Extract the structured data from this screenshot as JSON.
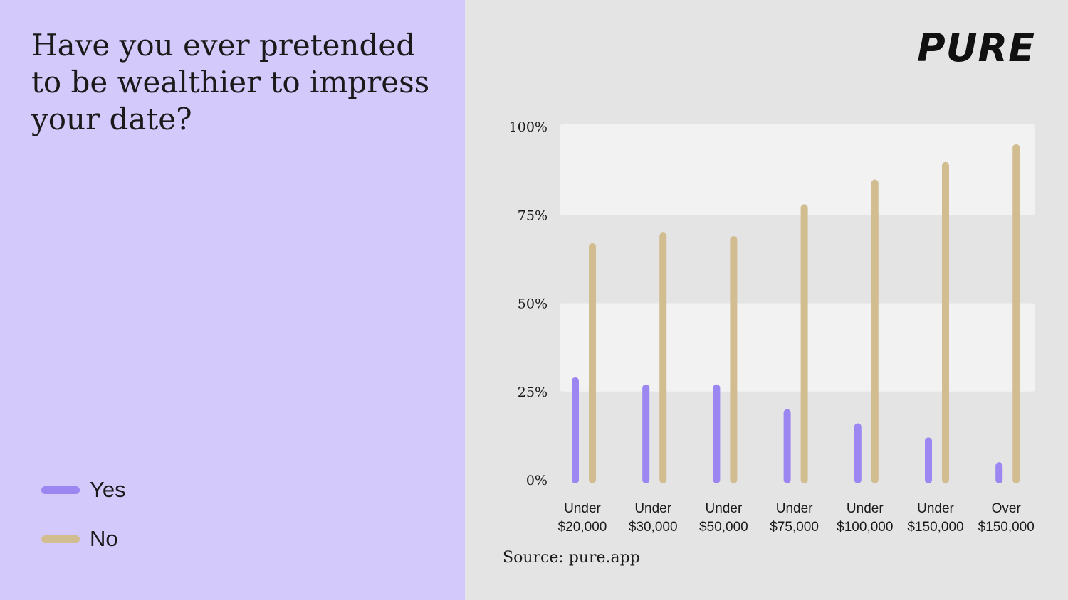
{
  "question": {
    "title": "Have you ever pretended to be wealthier to impress your date?"
  },
  "brand": {
    "logo_text": "PURE"
  },
  "legend": [
    {
      "label": "Yes",
      "color": "#9b86f2"
    },
    {
      "label": "No",
      "color": "#d2bd91"
    }
  ],
  "source": {
    "text": "Source: pure.app"
  },
  "chart_data": {
    "type": "bar",
    "categories": [
      [
        "Under",
        "$20,000"
      ],
      [
        "Under",
        "$30,000"
      ],
      [
        "Under",
        "$50,000"
      ],
      [
        "Under",
        "$75,000"
      ],
      [
        "Under",
        "$100,000"
      ],
      [
        "Under",
        "$150,000"
      ],
      [
        "Over",
        "$150,000"
      ]
    ],
    "series": [
      {
        "name": "Yes",
        "color": "#9b86f2",
        "values": [
          28,
          26,
          26,
          19,
          15,
          11,
          4
        ]
      },
      {
        "name": "No",
        "color": "#d2bd91",
        "values": [
          66,
          69,
          68,
          77,
          84,
          89,
          94
        ]
      }
    ],
    "yticks": [
      "0%",
      "25%",
      "50%",
      "75%",
      "100%"
    ],
    "ylim": [
      0,
      100
    ],
    "grid": "alternating bands",
    "legend_position": "bottom-left"
  }
}
